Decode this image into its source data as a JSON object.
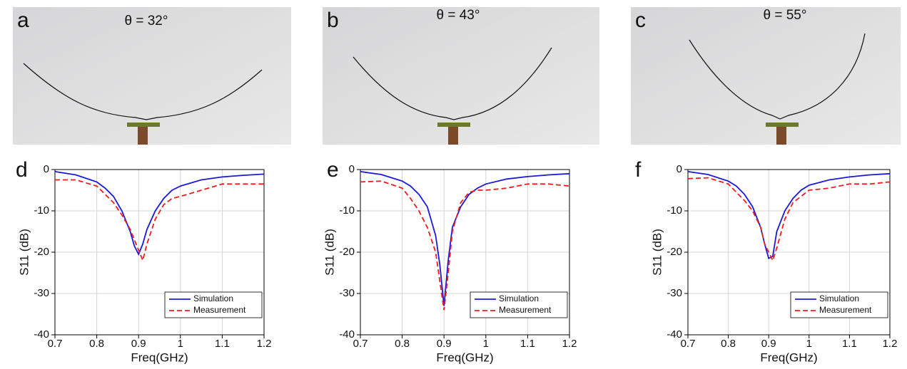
{
  "photos": [
    {
      "label": "a",
      "caption": "θ = 32°"
    },
    {
      "label": "b",
      "caption": "θ = 43°"
    },
    {
      "label": "c",
      "caption": "θ = 55°"
    }
  ],
  "chart_data": [
    {
      "type": "line",
      "panel": "d",
      "xlabel": "Freq(GHz)",
      "ylabel": "S11 (dB)",
      "x": [
        0.7,
        0.75,
        0.8,
        0.82,
        0.84,
        0.86,
        0.88,
        0.89,
        0.9,
        0.91,
        0.92,
        0.94,
        0.96,
        0.98,
        1.0,
        1.05,
        1.1,
        1.15,
        1.2
      ],
      "series": [
        {
          "name": "Simulation",
          "color": "#1a1adc",
          "linestyle": "solid",
          "values": [
            -0.5,
            -1.3,
            -3,
            -4.5,
            -6.5,
            -10,
            -15,
            -18.5,
            -20.5,
            -18,
            -14.5,
            -10,
            -7,
            -5,
            -4,
            -2.5,
            -1.8,
            -1.4,
            -1.1
          ]
        },
        {
          "name": "Measurement",
          "color": "#ee1c1c",
          "linestyle": "dashed",
          "values": [
            -2.5,
            -2.5,
            -4,
            -6,
            -8,
            -11,
            -14.5,
            -17,
            -19.5,
            -22,
            -18,
            -12,
            -8.5,
            -7,
            -6.5,
            -5,
            -3.5,
            -3.5,
            -3.5
          ]
        }
      ],
      "xlim": [
        0.7,
        1.2
      ],
      "xticks": [
        0.7,
        0.8,
        0.9,
        1.0,
        1.1,
        1.2
      ],
      "ylim": [
        -40,
        0
      ],
      "yticks": [
        -40,
        -30,
        -20,
        -10,
        0
      ],
      "grid": true,
      "legend": "lower right"
    },
    {
      "type": "line",
      "panel": "e",
      "xlabel": "Freq(GHz)",
      "ylabel": "S11 (dB)",
      "x": [
        0.7,
        0.75,
        0.8,
        0.82,
        0.84,
        0.86,
        0.88,
        0.89,
        0.9,
        0.91,
        0.92,
        0.94,
        0.96,
        0.98,
        1.0,
        1.05,
        1.1,
        1.15,
        1.2
      ],
      "series": [
        {
          "name": "Simulation",
          "color": "#1a1adc",
          "linestyle": "solid",
          "values": [
            -0.5,
            -1.2,
            -2.8,
            -4,
            -6,
            -9,
            -16,
            -23,
            -33,
            -22,
            -14,
            -9,
            -6,
            -4.5,
            -3.5,
            -2.3,
            -1.7,
            -1.3,
            -1.0
          ]
        },
        {
          "name": "Measurement",
          "color": "#ee1c1c",
          "linestyle": "dashed",
          "values": [
            -3,
            -2.8,
            -4.5,
            -7,
            -10,
            -14,
            -20,
            -27,
            -34,
            -25,
            -15,
            -8,
            -5.5,
            -5,
            -5,
            -4.5,
            -3.5,
            -3.5,
            -4
          ]
        }
      ],
      "xlim": [
        0.7,
        1.2
      ],
      "xticks": [
        0.7,
        0.8,
        0.9,
        1.0,
        1.1,
        1.2
      ],
      "ylim": [
        -40,
        0
      ],
      "yticks": [
        -40,
        -30,
        -20,
        -10,
        0
      ],
      "grid": true,
      "legend": "lower right"
    },
    {
      "type": "line",
      "panel": "f",
      "xlabel": "Freq(GHz)",
      "ylabel": "S11 (dB)",
      "x": [
        0.7,
        0.75,
        0.8,
        0.82,
        0.84,
        0.86,
        0.88,
        0.89,
        0.9,
        0.91,
        0.92,
        0.94,
        0.96,
        0.98,
        1.0,
        1.05,
        1.1,
        1.15,
        1.2
      ],
      "series": [
        {
          "name": "Simulation",
          "color": "#1a1adc",
          "linestyle": "solid",
          "values": [
            -0.5,
            -1.2,
            -2.8,
            -4,
            -6,
            -9,
            -14,
            -18,
            -21.5,
            -21,
            -15,
            -10,
            -7,
            -5,
            -3.8,
            -2.5,
            -1.8,
            -1.3,
            -1.0
          ]
        },
        {
          "name": "Measurement",
          "color": "#ee1c1c",
          "linestyle": "dashed",
          "values": [
            -2.2,
            -2,
            -3.5,
            -5.5,
            -7.5,
            -10,
            -14,
            -18,
            -20,
            -22,
            -19,
            -12,
            -8,
            -6.5,
            -5,
            -4.5,
            -3.5,
            -3.5,
            -3
          ]
        }
      ],
      "xlim": [
        0.7,
        1.2
      ],
      "xticks": [
        0.7,
        0.8,
        0.9,
        1.0,
        1.1,
        1.2
      ],
      "ylim": [
        -40,
        0
      ],
      "yticks": [
        -40,
        -30,
        -20,
        -10,
        0
      ],
      "grid": true,
      "legend": "lower right"
    }
  ]
}
